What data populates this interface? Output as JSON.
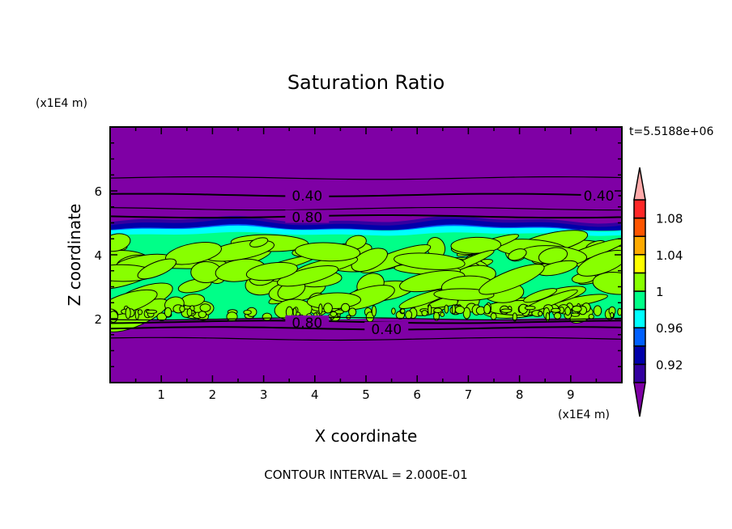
{
  "chart_data": {
    "type": "heatmap",
    "subtype": "filled-contour",
    "title": "Saturation Ratio",
    "xlabel": "X coordinate",
    "ylabel": "Z coordinate",
    "x_units": "(x1E4 m)",
    "y_units": "(x1E4 m)",
    "time_label": "t=5.5188e+06",
    "footer": "CONTOUR INTERVAL = 2.000E-01",
    "xlim": [
      0,
      10
    ],
    "ylim": [
      0,
      8
    ],
    "xticks": [
      "1",
      "2",
      "3",
      "4",
      "5",
      "6",
      "7",
      "8",
      "9"
    ],
    "yticks": [
      "2",
      "4",
      "6"
    ],
    "colorbar": {
      "levels": [
        0.9,
        0.92,
        0.94,
        0.96,
        0.98,
        1.0,
        1.02,
        1.04,
        1.06,
        1.08,
        1.1
      ],
      "labels": [
        "0.92",
        "0.96",
        "1",
        "1.04",
        "1.08"
      ],
      "colors": [
        "#3300a0",
        "#0000aa",
        "#0060ff",
        "#00ffff",
        "#00ff88",
        "#88ff00",
        "#ffff00",
        "#ffaa00",
        "#ff5500",
        "#ff2828"
      ],
      "under_color": "#7f00a5",
      "over_color": "#ffaaaa",
      "extend": "both"
    },
    "contour_lines": [
      {
        "z": 6.4,
        "label": ""
      },
      {
        "z": 5.87,
        "label": "0.40"
      },
      {
        "z": 5.44,
        "label": ""
      },
      {
        "z": 5.2,
        "label": "0.80"
      },
      {
        "z": 2.0,
        "label": ""
      },
      {
        "z": 1.9,
        "label": "0.80"
      },
      {
        "z": 1.7,
        "label": "0.40"
      },
      {
        "z": 1.37,
        "label": ""
      }
    ],
    "extra_label": "0.40",
    "regions": {
      "cloud_layer_z": [
        2.0,
        4.8
      ],
      "dry_band_z": [
        4.7,
        5.1
      ]
    }
  }
}
